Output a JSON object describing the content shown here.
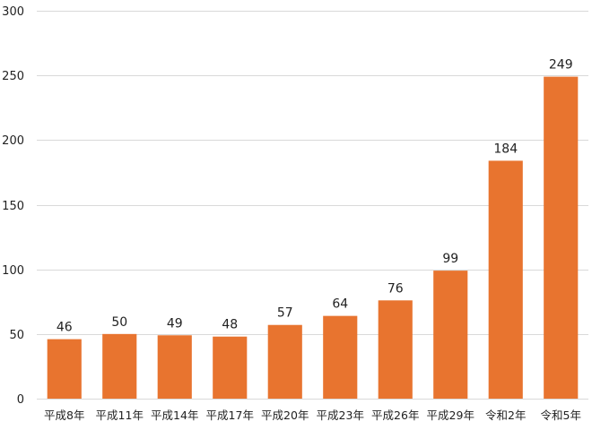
{
  "chart_data": {
    "type": "bar",
    "title": "",
    "xlabel": "",
    "ylabel": "",
    "categories": [
      "平成8年",
      "平成11年",
      "平成14年",
      "平成17年",
      "平成20年",
      "平成23年",
      "平成26年",
      "平成29年",
      "令和2年",
      "令和5年"
    ],
    "values": [
      46,
      50,
      49,
      48,
      57,
      64,
      76,
      99,
      184,
      249
    ],
    "ylim": [
      0,
      300
    ],
    "yticks": [
      0,
      50,
      100,
      150,
      200,
      250,
      300
    ],
    "grid": true,
    "legend": "none",
    "data_labels": true,
    "colors": {
      "bar": "#E8742F",
      "grid": "#D9D9D9",
      "text": "#222222"
    }
  }
}
